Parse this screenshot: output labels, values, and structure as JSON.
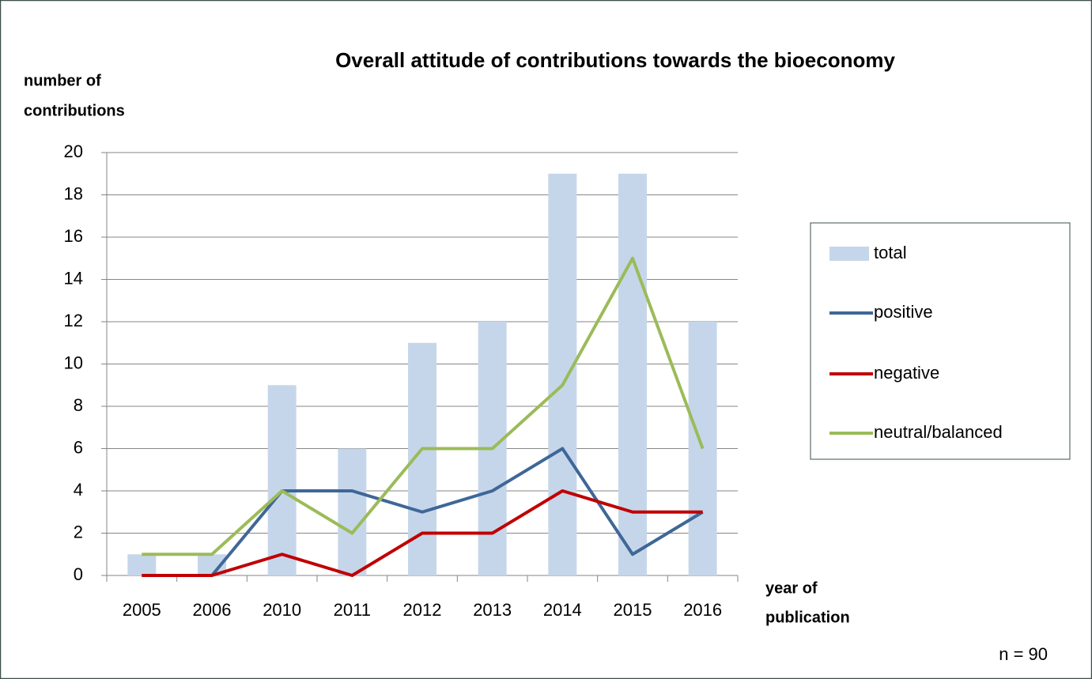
{
  "chart_data": {
    "type": "bar",
    "title": "Overall attitude of contributions towards the bioeconomy",
    "ylabel": [
      "number of",
      "contributions"
    ],
    "xlabel": [
      "year of",
      "publication"
    ],
    "annotation": "n = 90",
    "categories": [
      "2005",
      "2006",
      "2010",
      "2011",
      "2012",
      "2013",
      "2014",
      "2015",
      "2016"
    ],
    "series": [
      {
        "name": "total",
        "type": "bar",
        "color": "#c6d6ea",
        "values": [
          1,
          1,
          9,
          6,
          11,
          12,
          19,
          19,
          12
        ]
      },
      {
        "name": "positive",
        "type": "line",
        "color": "#3f6797",
        "values": [
          0,
          0,
          4,
          4,
          3,
          4,
          6,
          1,
          3
        ]
      },
      {
        "name": "negative",
        "type": "line",
        "color": "#c00000",
        "values": [
          0,
          0,
          1,
          0,
          2,
          2,
          4,
          3,
          3
        ]
      },
      {
        "name": "neutral/balanced",
        "type": "line",
        "color": "#9bbb59",
        "values": [
          1,
          1,
          4,
          2,
          6,
          6,
          9,
          15,
          6
        ]
      }
    ],
    "ylim": [
      0,
      20
    ],
    "yticks": [
      0,
      2,
      4,
      6,
      8,
      10,
      12,
      14,
      16,
      18,
      20
    ],
    "grid": true,
    "legend": "right"
  }
}
